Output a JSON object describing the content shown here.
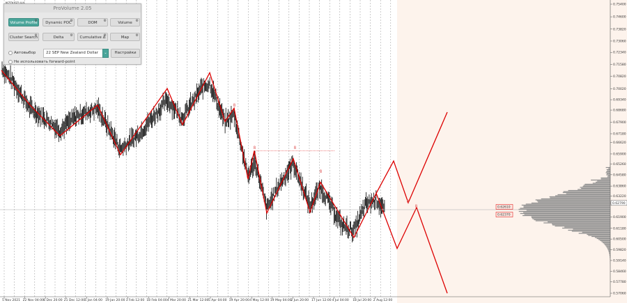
{
  "symbol": "NZDUSD,H4",
  "panel": {
    "title": "ProVolume 2.05",
    "buttons": [
      {
        "label": "Volume Profile",
        "active": true
      },
      {
        "label": "Dynamic POC",
        "active": false
      },
      {
        "label": "DOM",
        "active": false
      },
      {
        "label": "Volume",
        "active": false
      },
      {
        "label": "Cluster Search",
        "active": false
      },
      {
        "label": "Delta",
        "active": false
      },
      {
        "label": "Cumulative Δ",
        "active": false
      },
      {
        "label": "Map",
        "active": false
      }
    ],
    "auto_select_label": "Автовыбор",
    "instrument_value": "22 SEP New Zealand Dollar",
    "settings_label": "Настройки",
    "forward_point_label": "Не использовать forward-point"
  },
  "price_axis": [
    "0.75400",
    "0.74600",
    "0.73820",
    "0.73060",
    "0.72340",
    "0.71580",
    "0.70820",
    "0.70020",
    "0.69340",
    "0.68680",
    "0.67900",
    "0.67180",
    "0.66620",
    "0.65900",
    "0.65260",
    "0.64580",
    "0.63860",
    "0.63220",
    "0.62790",
    "0.61900",
    "0.61180",
    "0.60500",
    "0.59820",
    "0.59140",
    "0.58460",
    "0.57780",
    "0.57060"
  ],
  "current_price": "0.62790",
  "price_tags": [
    "0.62610",
    "0.62370"
  ],
  "time_axis": [
    "5 Nov 2021",
    "22 Nov 04:00",
    "6 Dec 20:00",
    "21 Dec 12:00",
    "5 Jan 04:00",
    "19 Jan 20:00",
    "3 Feb 12:00",
    "18 Feb 04:00",
    "4 Mar 20:00",
    "21 Mar 12:00",
    "5 Apr 04:00",
    "19 Apr 20:00",
    "4 May 12:00",
    "19 May 04:00",
    "2 Jun 20:00",
    "17 Jun 12:00",
    "4 Jul 04:00",
    "18 Jul 20:00",
    "2 Aug 12:00"
  ],
  "marker_glyph": "8",
  "colors": {
    "zigzag": "#dd0000",
    "price": "#000000",
    "profile": "#8f8f8f",
    "grid": "#999999",
    "background": "#fdf3ec",
    "accent": "#4aa59a"
  }
}
